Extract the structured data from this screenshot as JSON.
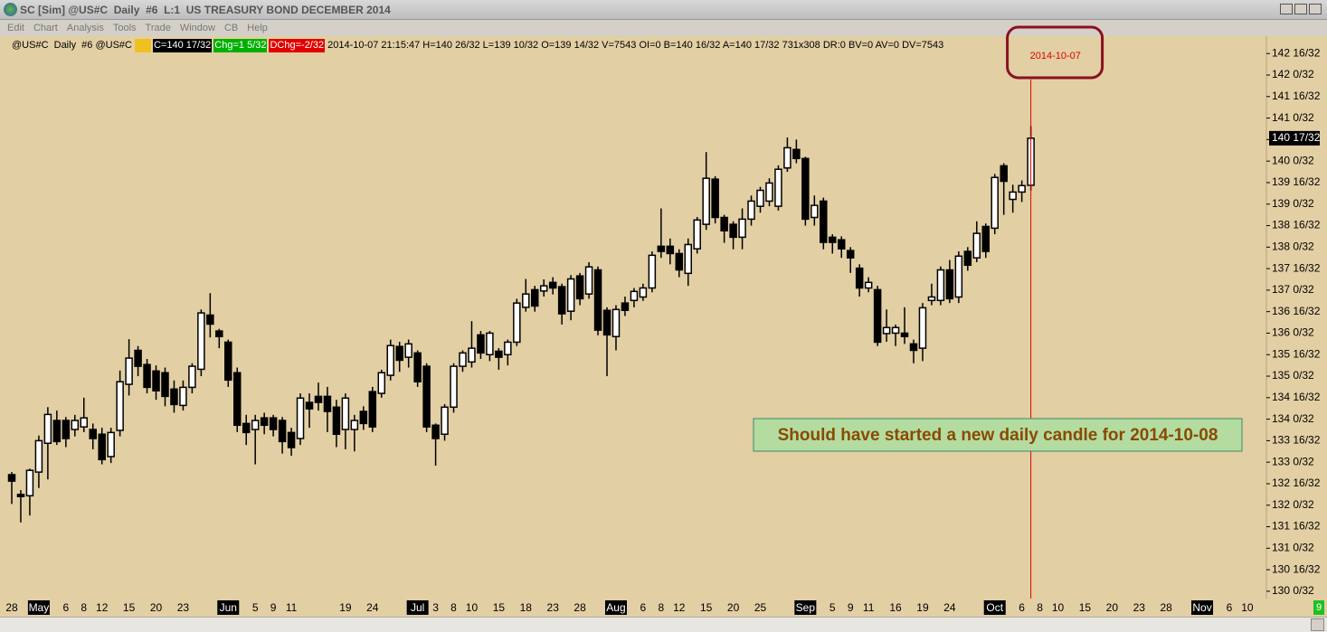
{
  "window": {
    "title": "SC [Sim] @US#C  Daily  #6  L:1  US TREASURY BOND DECEMBER 2014"
  },
  "menu": [
    "Edit",
    "Chart",
    "Analysis",
    "Tools",
    "Trade",
    "Window",
    "CB",
    "Help"
  ],
  "info_bar": {
    "symbol": "@US#C  Daily  #6 @US#C",
    "close": "C=140 17/32",
    "change": "Chg=1 5/32",
    "daily_change": "DChg=-2/32",
    "details": "2014-10-07 21:15:47 H=140 26/32 L=139 10/32 O=139 14/32 V=7543 OI=0 B=140 16/32 A=140 17/32 731x308 DR:0 BV=0 AV=0 DV=7543"
  },
  "status": {
    "corner_indicator": "9"
  },
  "chart_data": {
    "type": "candlestick",
    "categories": [
      "28",
      null,
      null,
      "May",
      null,
      null,
      "6",
      null,
      "8",
      null,
      "12",
      null,
      null,
      "15",
      null,
      null,
      "20",
      null,
      null,
      "23",
      null,
      null,
      null,
      null,
      "Jun",
      null,
      null,
      "5",
      null,
      "9",
      null,
      "11",
      null,
      null,
      null,
      null,
      null,
      "19",
      null,
      null,
      "24",
      null,
      null,
      null,
      null,
      "Jul",
      null,
      "3",
      null,
      "8",
      null,
      "10",
      null,
      null,
      "15",
      null,
      null,
      "18",
      null,
      null,
      "23",
      null,
      null,
      "28",
      null,
      null,
      null,
      "Aug",
      null,
      null,
      "6",
      null,
      "8",
      null,
      "12",
      null,
      null,
      "15",
      null,
      null,
      "20",
      null,
      null,
      "25",
      null,
      null,
      null,
      null,
      "Sep",
      null,
      null,
      "5",
      null,
      "9",
      null,
      "11",
      null,
      null,
      "16",
      null,
      null,
      "19",
      null,
      null,
      "24",
      null,
      null,
      null,
      null,
      "Oct",
      null,
      null,
      "6",
      null,
      "8",
      null,
      "10",
      null,
      null,
      "15",
      null,
      null,
      "20",
      null,
      null,
      "23",
      null,
      null,
      "28",
      null,
      null,
      null,
      "Nov",
      null,
      null,
      "6",
      null,
      "10"
    ],
    "open": [
      132.71,
      132.25,
      132.22,
      132.77,
      133.44,
      133.97,
      133.97,
      133.76,
      133.82,
      133.76,
      133.65,
      133.13,
      133.74,
      134.81,
      135.6,
      135.27,
      135.12,
      135.08,
      134.7,
      134.32,
      134.74,
      135.16,
      136.42,
      136.05,
      135.79,
      135.08,
      133.9,
      133.76,
      134.03,
      134.03,
      133.97,
      133.69,
      133.55,
      134.39,
      134.53,
      134.53,
      134.28,
      133.76,
      133.76,
      134.18,
      134.64,
      134.6,
      135.02,
      135.69,
      135.44,
      135.54,
      135.23,
      133.86,
      133.65,
      134.28,
      135.23,
      135.33,
      135.96,
      135.5,
      135.58,
      135.5,
      135.79,
      136.6,
      137.01,
      136.98,
      137.18,
      137.08,
      136.51,
      137.33,
      136.91,
      137.47,
      136.53,
      135.92,
      136.7,
      136.76,
      136.84,
      137.05,
      138.02,
      138.02,
      137.85,
      137.39,
      137.96,
      138.53,
      139.58,
      138.69,
      138.53,
      138.23,
      138.65,
      138.95,
      139.07,
      138.95,
      139.84,
      140.27,
      140.06,
      138.69,
      139.07,
      138.23,
      138.17,
      137.92,
      137.51,
      137.05,
      137.01,
      135.99,
      136.0,
      136.0,
      135.75,
      135.65,
      136.76,
      136.76,
      137.47,
      136.84,
      137.9,
      137.75,
      138.48,
      138.44,
      139.89,
      139.11,
      139.28,
      139.4375,
      null,
      null,
      null,
      null,
      null,
      null,
      null,
      null,
      null,
      null,
      null,
      null,
      null,
      null,
      null,
      null,
      null,
      null,
      null,
      null,
      null,
      null,
      null,
      null
    ],
    "high": [
      132.77,
      132.35,
      132.85,
      133.62,
      134.28,
      134.2,
      134.05,
      134.1,
      134.5,
      133.9,
      133.8,
      133.8,
      135.13,
      135.86,
      135.7,
      135.4,
      135.25,
      135.2,
      134.9,
      134.9,
      135.3,
      136.55,
      136.93,
      136.1,
      135.85,
      135.2,
      134.1,
      134.1,
      134.15,
      134.1,
      134.05,
      133.8,
      134.6,
      134.6,
      134.85,
      134.75,
      134.45,
      134.6,
      134.1,
      134.3,
      134.75,
      135.15,
      135.85,
      135.8,
      135.85,
      135.6,
      135.3,
      133.9,
      134.35,
      135.3,
      135.6,
      136.28,
      136.05,
      136.05,
      135.65,
      135.85,
      136.8,
      137.26,
      137.1,
      137.25,
      137.3,
      137.15,
      137.35,
      137.4,
      137.65,
      137.55,
      136.6,
      136.65,
      136.85,
      137.05,
      137.15,
      137.9,
      138.9,
      138.2,
      137.95,
      138.2,
      138.7,
      140.21,
      139.65,
      138.75,
      138.6,
      138.9,
      139.2,
      139.4,
      139.6,
      139.9,
      140.55,
      140.5,
      140.1,
      139.2,
      139.15,
      138.3,
      138.25,
      138.0,
      137.6,
      137.3,
      137.1,
      136.55,
      136.2,
      136.6,
      135.85,
      136.7,
      137.15,
      137.55,
      137.7,
      137.9,
      138.0,
      138.6,
      138.55,
      139.7,
      139.95,
      139.45,
      139.55,
      140.8125,
      null,
      null,
      null,
      null,
      null,
      null,
      null,
      null,
      null,
      null,
      null,
      null,
      null,
      null,
      null,
      null,
      null,
      null,
      null,
      null,
      null,
      null,
      null,
      null
    ],
    "low": [
      132.03,
      131.6,
      131.76,
      132.4,
      132.6,
      133.4,
      133.35,
      133.6,
      133.7,
      133.3,
      132.95,
      132.98,
      133.6,
      134.55,
      135.0,
      134.6,
      134.45,
      134.3,
      134.15,
      134.2,
      134.6,
      135.0,
      135.9,
      135.65,
      134.75,
      133.7,
      133.4,
      132.95,
      133.65,
      133.6,
      133.2,
      133.15,
      133.4,
      133.8,
      134.2,
      133.7,
      133.35,
      133.3,
      133.25,
      133.75,
      133.7,
      134.5,
      134.9,
      135.1,
      135.2,
      134.75,
      133.7,
      132.92,
      133.5,
      134.15,
      135.1,
      135.2,
      135.4,
      135.35,
      135.15,
      135.25,
      135.7,
      136.5,
      136.5,
      136.85,
      136.9,
      136.2,
      136.3,
      136.65,
      136.8,
      135.95,
      135.0,
      135.6,
      136.4,
      136.6,
      136.75,
      136.95,
      137.75,
      137.6,
      137.3,
      137.1,
      137.85,
      138.4,
      138.55,
      138.1,
      137.95,
      137.95,
      138.5,
      138.8,
      138.95,
      138.85,
      139.75,
      139.95,
      138.5,
      138.5,
      137.95,
      137.85,
      137.75,
      137.4,
      136.85,
      136.95,
      135.7,
      135.8,
      135.7,
      135.75,
      135.3,
      135.35,
      136.65,
      136.65,
      136.7,
      136.7,
      137.45,
      137.65,
      137.75,
      138.3,
      138.75,
      138.8,
      139.05,
      139.3125,
      null,
      null,
      null,
      null,
      null,
      null,
      null,
      null,
      null,
      null,
      null,
      null,
      null,
      null,
      null,
      null,
      null,
      null,
      null,
      null,
      null,
      null,
      null,
      null
    ],
    "close": [
      132.56,
      132.2,
      132.81,
      133.5,
      134.11,
      133.48,
      133.55,
      133.97,
      134.03,
      133.55,
      133.06,
      133.69,
      134.87,
      135.42,
      135.23,
      134.74,
      134.66,
      134.53,
      134.34,
      134.74,
      135.23,
      136.47,
      136.21,
      135.92,
      134.91,
      133.86,
      133.69,
      133.97,
      133.86,
      133.76,
      133.48,
      133.34,
      134.49,
      134.24,
      134.39,
      134.18,
      133.65,
      134.49,
      133.97,
      133.9,
      133.82,
      135.08,
      135.71,
      135.37,
      135.75,
      134.87,
      133.82,
      133.55,
      134.28,
      135.23,
      135.54,
      135.65,
      135.54,
      136.0,
      135.44,
      135.79,
      136.7,
      136.91,
      136.63,
      137.1,
      137.05,
      136.45,
      137.26,
      136.8,
      137.54,
      136.07,
      135.96,
      136.55,
      136.53,
      136.97,
      137.05,
      137.81,
      137.9,
      137.85,
      137.47,
      138.06,
      138.63,
      139.6,
      138.69,
      138.38,
      138.23,
      138.65,
      139.07,
      139.32,
      139.49,
      139.81,
      140.31,
      140.06,
      138.65,
      138.97,
      138.11,
      138.11,
      137.96,
      137.75,
      137.05,
      137.18,
      135.79,
      136.13,
      136.13,
      135.92,
      135.6,
      136.59,
      136.84,
      137.47,
      136.8,
      137.79,
      137.58,
      138.32,
      137.9,
      139.62,
      139.53,
      139.28,
      139.43,
      140.53125,
      null,
      null,
      null,
      null,
      null,
      null,
      null,
      null,
      null,
      null,
      null,
      null,
      null,
      null,
      null,
      null,
      null,
      null,
      null,
      null,
      null,
      null,
      null,
      null
    ],
    "ylim": [
      129.83,
      142.82
    ],
    "yticks": [
      {
        "value": 130,
        "label": "130 0/32"
      },
      {
        "value": 130.5,
        "label": "130 16/32"
      },
      {
        "value": 131,
        "label": "131 0/32"
      },
      {
        "value": 131.5,
        "label": "131 16/32"
      },
      {
        "value": 132,
        "label": "132 0/32"
      },
      {
        "value": 132.5,
        "label": "132 16/32"
      },
      {
        "value": 133,
        "label": "133 0/32"
      },
      {
        "value": 133.5,
        "label": "133 16/32"
      },
      {
        "value": 134,
        "label": "134 0/32"
      },
      {
        "value": 134.5,
        "label": "134 16/32"
      },
      {
        "value": 135,
        "label": "135 0/32"
      },
      {
        "value": 135.5,
        "label": "135 16/32"
      },
      {
        "value": 136,
        "label": "136 0/32"
      },
      {
        "value": 136.5,
        "label": "136 16/32"
      },
      {
        "value": 137,
        "label": "137 0/32"
      },
      {
        "value": 137.5,
        "label": "137 16/32"
      },
      {
        "value": 138,
        "label": "138 0/32"
      },
      {
        "value": 138.5,
        "label": "138 16/32"
      },
      {
        "value": 139,
        "label": "139 0/32"
      },
      {
        "value": 139.5,
        "label": "139 16/32"
      },
      {
        "value": 140,
        "label": "140 0/32"
      },
      {
        "value": 140.5,
        "label": "140 16/32"
      },
      {
        "value": 141,
        "label": "141 0/32"
      },
      {
        "value": 141.5,
        "label": "141 16/32"
      },
      {
        "value": 142,
        "label": "142 0/32"
      },
      {
        "value": 142.5,
        "label": "142 16/32"
      }
    ],
    "last_price": {
      "value": 140.53125,
      "label": "140 17/32"
    },
    "cursor_label": "2014-10-07",
    "annotation": "Should have started a new daily candle for 2014-10-08",
    "background": "#e2cfa4",
    "up_color": "#ffffff",
    "down_color": "#000000",
    "cursor_color": "#e00000"
  }
}
